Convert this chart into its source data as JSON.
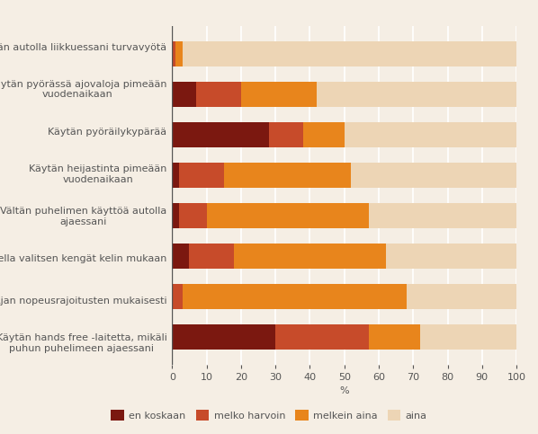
{
  "categories": [
    "Käytän autolla liikkuessani turvavyötä",
    "Käytän pyörässä ajovaloja pimeään\nvuodenaikaan",
    "Käytän pyöräilykypärää",
    "Käytän heijastinta pimeään\nvuodenaikaan",
    "Vältän puhelimen käyttöä autolla\najaessani",
    "Talvella valitsen kengät kelin mukaan",
    "Ajan nopeusrajoitusten mukaisesti",
    "Käytän hands free -laitetta, mikäli\npuhun puhelimeen ajaessani"
  ],
  "en_koskaan": [
    0,
    7,
    28,
    2,
    2,
    5,
    0,
    30
  ],
  "melko_harvoin": [
    1,
    13,
    10,
    13,
    8,
    13,
    3,
    27
  ],
  "melkein_aina": [
    2,
    22,
    12,
    37,
    47,
    44,
    65,
    15
  ],
  "aina": [
    97,
    58,
    50,
    48,
    43,
    38,
    32,
    28
  ],
  "color_en_koskaan": "#7B1810",
  "color_melko_harvoin": "#C74B2A",
  "color_melkein_aina": "#E8851C",
  "color_aina": "#EDD5B5",
  "xlabel": "%",
  "xlim": [
    0,
    100
  ],
  "xticks": [
    0,
    10,
    20,
    30,
    40,
    50,
    60,
    70,
    80,
    90,
    100
  ],
  "legend_labels": [
    "en koskaan",
    "melko harvoin",
    "melkein aina",
    "aina"
  ],
  "background_color": "#F5EEE4",
  "label_fontsize": 8.0,
  "tick_fontsize": 8.0
}
